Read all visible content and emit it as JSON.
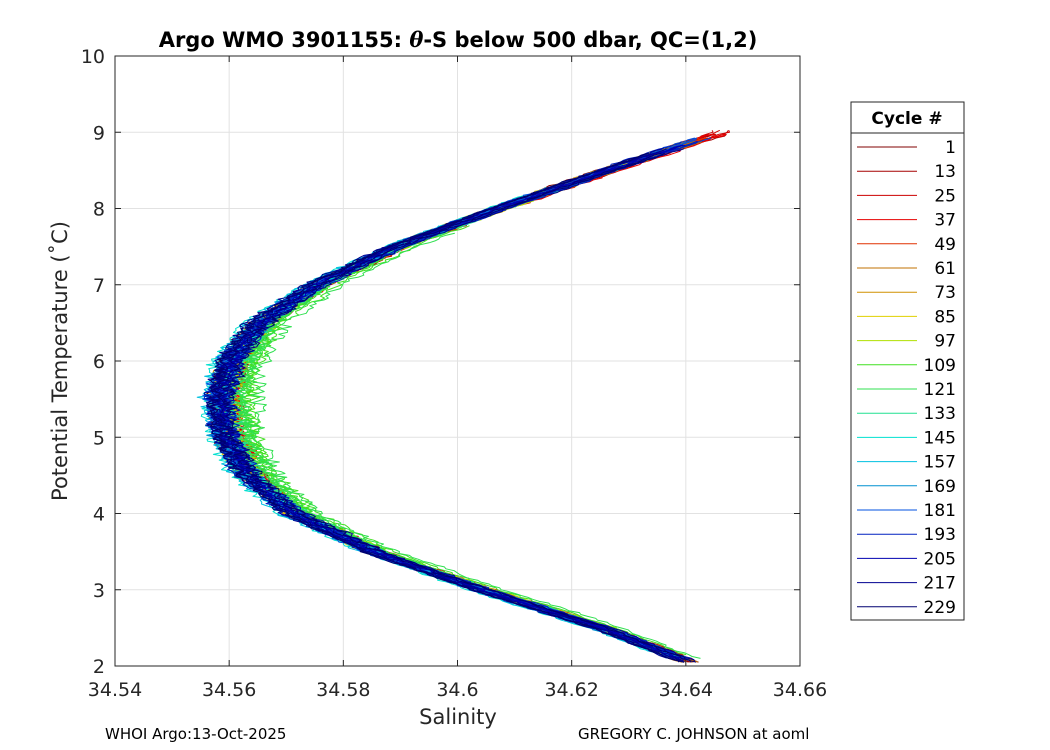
{
  "chart_data": {
    "type": "line",
    "title": "Argo WMO 3901155: θ-S below 500 dbar,  QC=(1,2)",
    "title_prefix": "Argo WMO 3901155: ",
    "title_theta": "θ",
    "title_suffix": "-S below 500 dbar,  QC=(1,2)",
    "xlabel": "Salinity",
    "ylabel": "Potential Temperature (˚C)",
    "xlim": [
      34.54,
      34.66
    ],
    "ylim": [
      2,
      10
    ],
    "xticks": [
      34.54,
      34.56,
      34.58,
      34.6,
      34.62,
      34.64,
      34.66
    ],
    "xtick_labels": [
      "34.54",
      "34.56",
      "34.58",
      "34.6",
      "34.62",
      "34.64",
      "34.66"
    ],
    "yticks": [
      2,
      3,
      4,
      5,
      6,
      7,
      8,
      9,
      10
    ],
    "ytick_labels": [
      "2",
      "3",
      "4",
      "5",
      "6",
      "7",
      "8",
      "9",
      "10"
    ],
    "grid": true,
    "legend_title": "Cycle #",
    "legend_position": "right",
    "series": [
      {
        "name": "1",
        "color": "#800000",
        "offset": 0.001,
        "tmin": 2.05,
        "tmax": 8.95
      },
      {
        "name": "13",
        "color": "#a50000",
        "offset": 0.0008,
        "tmin": 2.05,
        "tmax": 9.0
      },
      {
        "name": "25",
        "color": "#cc0000",
        "offset": 0.0012,
        "tmin": 2.1,
        "tmax": 9.05
      },
      {
        "name": "37",
        "color": "#e60000",
        "offset": 0.0016,
        "tmin": 2.1,
        "tmax": 9.0
      },
      {
        "name": "49",
        "color": "#e03000",
        "offset": 0.0014,
        "tmin": 2.1,
        "tmax": 8.95
      },
      {
        "name": "61",
        "color": "#c07000",
        "offset": 0.0011,
        "tmin": 2.05,
        "tmax": 8.9
      },
      {
        "name": "73",
        "color": "#d09000",
        "offset": 0.0009,
        "tmin": 2.1,
        "tmax": 8.9
      },
      {
        "name": "85",
        "color": "#e0d000",
        "offset": 0.001,
        "tmin": 2.1,
        "tmax": 8.85
      },
      {
        "name": "97",
        "color": "#b0e000",
        "offset": 0.002,
        "tmin": 2.15,
        "tmax": 8.7
      },
      {
        "name": "109",
        "color": "#40e020",
        "offset": 0.006,
        "tmin": 2.15,
        "tmax": 7.8
      },
      {
        "name": "121",
        "color": "#30e050",
        "offset": 0.005,
        "tmin": 2.1,
        "tmax": 7.7
      },
      {
        "name": "133",
        "color": "#20e090",
        "offset": 0.001,
        "tmin": 2.15,
        "tmax": 8.6
      },
      {
        "name": "145",
        "color": "#00e0d0",
        "offset": -0.001,
        "tmin": 2.15,
        "tmax": 8.3
      },
      {
        "name": "157",
        "color": "#00c0e0",
        "offset": -0.0008,
        "tmin": 2.1,
        "tmax": 7.8
      },
      {
        "name": "169",
        "color": "#0090d0",
        "offset": -0.0004,
        "tmin": 2.1,
        "tmax": 8.5
      },
      {
        "name": "181",
        "color": "#0050e0",
        "offset": 0.0,
        "tmin": 2.1,
        "tmax": 8.95
      },
      {
        "name": "193",
        "color": "#0020c0",
        "offset": 0.0002,
        "tmin": 2.08,
        "tmax": 8.9
      },
      {
        "name": "205",
        "color": "#0000b0",
        "offset": 0.0004,
        "tmin": 2.08,
        "tmax": 8.85
      },
      {
        "name": "217",
        "color": "#000090",
        "offset": 0.0003,
        "tmin": 2.06,
        "tmax": 8.8
      },
      {
        "name": "229",
        "color": "#000070",
        "offset": 0.0001,
        "tmin": 2.05,
        "tmax": 8.75
      }
    ],
    "base_curve": [
      {
        "t": 2.0,
        "s": 34.642
      },
      {
        "t": 2.5,
        "s": 34.625
      },
      {
        "t": 3.0,
        "s": 34.604
      },
      {
        "t": 3.5,
        "s": 34.585
      },
      {
        "t": 4.0,
        "s": 34.571
      },
      {
        "t": 4.5,
        "s": 34.563
      },
      {
        "t": 5.0,
        "s": 34.559
      },
      {
        "t": 5.5,
        "s": 34.558
      },
      {
        "t": 6.0,
        "s": 34.56
      },
      {
        "t": 6.5,
        "s": 34.565
      },
      {
        "t": 7.0,
        "s": 34.575
      },
      {
        "t": 7.5,
        "s": 34.589
      },
      {
        "t": 8.0,
        "s": 34.607
      },
      {
        "t": 8.5,
        "s": 34.626
      },
      {
        "t": 9.0,
        "s": 34.646
      }
    ]
  },
  "footer": {
    "left": "WHOI Argo:13-Oct-2025",
    "right": "GREGORY C. JOHNSON at aoml"
  }
}
